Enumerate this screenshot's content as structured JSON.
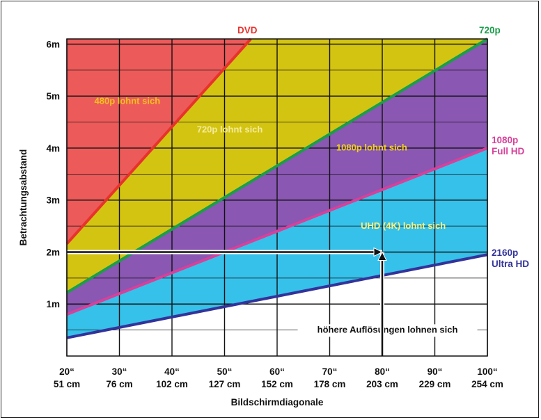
{
  "chart_data": {
    "type": "area",
    "xlabel": "Bildschirmdiagonale",
    "ylabel": "Betrachtungsabstand",
    "x_ticks": [
      {
        "value": 20,
        "inch": "20“",
        "cm": "51 cm"
      },
      {
        "value": 30,
        "inch": "30“",
        "cm": "76 cm"
      },
      {
        "value": 40,
        "inch": "40“",
        "cm": "102 cm"
      },
      {
        "value": 50,
        "inch": "50“",
        "cm": "127 cm"
      },
      {
        "value": 60,
        "inch": "60“",
        "cm": "152 cm"
      },
      {
        "value": 70,
        "inch": "70“",
        "cm": "178 cm"
      },
      {
        "value": 80,
        "inch": "80“",
        "cm": "203 cm"
      },
      {
        "value": 90,
        "inch": "90“",
        "cm": "229 cm"
      },
      {
        "value": 100,
        "inch": "100“",
        "cm": "254 cm"
      }
    ],
    "y_ticks": [
      {
        "value": 1,
        "label": "1m"
      },
      {
        "value": 2,
        "label": "2m"
      },
      {
        "value": 3,
        "label": "3m"
      },
      {
        "value": 4,
        "label": "4m"
      },
      {
        "value": 5,
        "label": "5m"
      },
      {
        "value": 6,
        "label": "6m"
      }
    ],
    "xlim": [
      20,
      100
    ],
    "ylim": [
      0,
      6.1
    ],
    "grid": true,
    "lines": [
      {
        "name": "DVD",
        "label_lines": [
          "DVD"
        ],
        "color": "#e8322c",
        "x": [
          20,
          55
        ],
        "y": [
          2.16,
          6.1
        ]
      },
      {
        "name": "720p",
        "label_lines": [
          "720p"
        ],
        "color": "#1a9e4a",
        "x": [
          20,
          100
        ],
        "y": [
          1.22,
          6.1
        ]
      },
      {
        "name": "1080p",
        "label_lines": [
          "1080p",
          "Full HD"
        ],
        "color": "#d8409a",
        "x": [
          20,
          100
        ],
        "y": [
          0.8,
          4.0
        ]
      },
      {
        "name": "2160p",
        "label_lines": [
          "2160p",
          "Ultra HD"
        ],
        "color": "#33339a",
        "x": [
          20,
          100
        ],
        "y": [
          0.35,
          1.95
        ]
      }
    ],
    "region_colors": {
      "dvd": "#ed5a5a",
      "p720": "#d4c412",
      "p1080": "#8a57b3",
      "uhd": "#36c1ea"
    },
    "region_labels": [
      {
        "text": "480p lohnt sich",
        "color": "#f2c21a",
        "x": 31.5,
        "y": 4.85
      },
      {
        "text": "720p lohnt sich",
        "color": "#f3ea9a",
        "x": 51,
        "y": 4.3
      },
      {
        "text": "1080p lohnt sich",
        "color": "#f2d21a",
        "x": 78,
        "y": 3.95
      },
      {
        "text": "UHD (4K)  lohnt sich",
        "color": "#fff07a",
        "x": 84,
        "y": 2.45
      },
      {
        "text": "höhere Auflösungen lohnen sich",
        "color": "#111111",
        "x": 81,
        "y": 0.45
      }
    ],
    "annotations": [
      {
        "type": "arrow",
        "from": [
          20,
          2.0
        ],
        "to": [
          80,
          2.0
        ]
      },
      {
        "type": "arrow",
        "from": [
          80,
          0
        ],
        "to": [
          80,
          2.0
        ]
      }
    ]
  }
}
